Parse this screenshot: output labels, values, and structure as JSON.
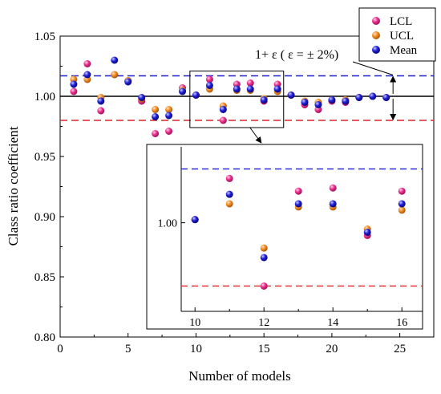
{
  "chart_data": {
    "type": "scatter",
    "xlabel": "Number of models",
    "ylabel": "Class ratio coefficient",
    "xlim": [
      0,
      27.5
    ],
    "ylim": [
      0.8,
      1.05
    ],
    "xticks": [
      0,
      5,
      10,
      15,
      20,
      25
    ],
    "xtick_labels": [
      "0",
      "5",
      "10",
      "15",
      "20",
      "25"
    ],
    "yticks": [
      0.8,
      0.85,
      0.9,
      0.95,
      1.0,
      1.05
    ],
    "ytick_labels": [
      "0.80",
      "0.85",
      "0.90",
      "0.95",
      "1.00",
      "1.05"
    ],
    "reference_lines": [
      {
        "y": 1.017,
        "style": "dashed",
        "color": "#1f1fd6"
      },
      {
        "y": 1.0,
        "style": "solid",
        "color": "#000000"
      },
      {
        "y": 0.98,
        "style": "dashed",
        "color": "#e0242a"
      }
    ],
    "legend": {
      "placement": "top-right"
    },
    "annotation": {
      "text": "1+ ε ( ε = ± 2%)"
    },
    "x": [
      1,
      2,
      3,
      4,
      5,
      6,
      7,
      8,
      9,
      10,
      11,
      12,
      13,
      14,
      15,
      16,
      17,
      18,
      19,
      20,
      21,
      22,
      23,
      24
    ],
    "series": [
      {
        "name": "LCL",
        "color": "#ec2f8f",
        "values": [
          1.004,
          1.027,
          0.988,
          1.018,
          1.013,
          0.996,
          0.969,
          0.971,
          1.007,
          1.001,
          1.014,
          0.98,
          1.01,
          1.011,
          0.996,
          1.01,
          1.001,
          0.993,
          0.989,
          0.996,
          0.995,
          0.999,
          1.0,
          0.999
        ]
      },
      {
        "name": "UCL",
        "color": "#f28b22",
        "values": [
          1.014,
          1.014,
          0.999,
          1.018,
          1.013,
          0.998,
          0.989,
          0.989,
          1.005,
          1.001,
          1.006,
          0.992,
          1.005,
          1.005,
          0.998,
          1.004,
          1.001,
          0.996,
          0.995,
          0.997,
          0.997,
          0.999,
          1.0,
          0.999
        ]
      },
      {
        "name": "Mean",
        "color": "#1f1fd6",
        "values": [
          1.01,
          1.018,
          0.996,
          1.03,
          1.012,
          0.999,
          0.983,
          0.984,
          1.004,
          1.001,
          1.009,
          0.989,
          1.006,
          1.006,
          0.997,
          1.006,
          1.001,
          0.995,
          0.993,
          0.997,
          0.996,
          0.999,
          1.0,
          0.999
        ]
      }
    ],
    "inset": {
      "source_region": {
        "x": [
          10,
          16
        ],
        "y": [
          0.974,
          1.021
        ]
      },
      "xlim": [
        9.6,
        16.6
      ],
      "ylim": [
        0.972,
        1.024
      ],
      "xticks": [
        10,
        12,
        14,
        16
      ],
      "xtick_labels": [
        "10",
        "12",
        "14",
        "16"
      ],
      "yticks": [
        1.0
      ],
      "ytick_labels": [
        "1.00"
      ]
    }
  }
}
